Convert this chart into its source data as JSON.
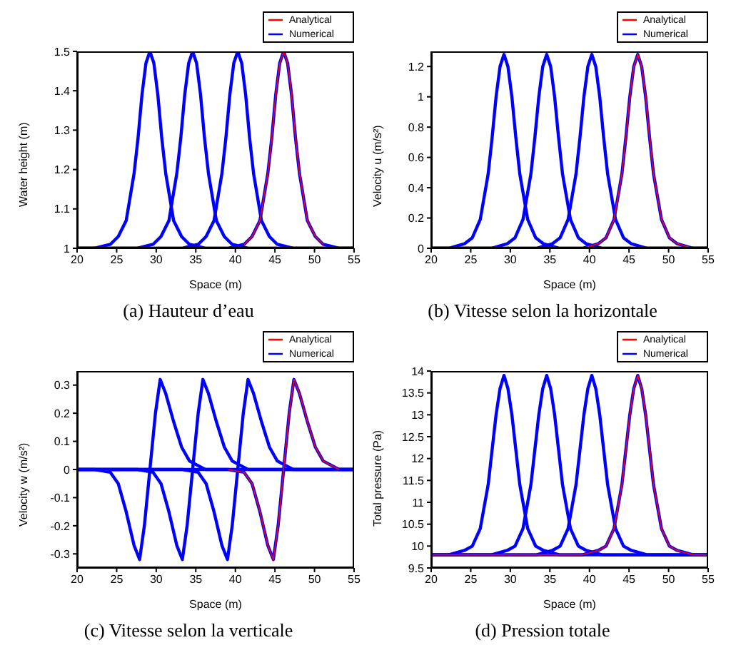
{
  "chart_data": [
    {
      "type": "line",
      "title": "(a) Hauteur d’eau",
      "xlabel": "Space (m)",
      "ylabel": "Water height (m)",
      "xlim": [
        20,
        55
      ],
      "xticks": [
        20,
        25,
        30,
        35,
        40,
        45,
        50,
        55
      ],
      "ylim": [
        1,
        1.5
      ],
      "yticks": [
        1,
        1.1,
        1.2,
        1.3,
        1.4,
        1.5
      ],
      "grid": false,
      "legend": "top right",
      "marker": "none",
      "line_style": "solid",
      "series": [
        {
          "name": "Numerical",
          "color": "#0000ff",
          "x": [
            20,
            22.2,
            24.2,
            25.2,
            26.2,
            27.2,
            27.7,
            28.2,
            28.7,
            29.2,
            29.7,
            30.2,
            30.7,
            31.2,
            32.2,
            33.2,
            34.2,
            36.2,
            55
          ],
          "values": [
            1,
            1,
            1.01,
            1.03,
            1.07,
            1.19,
            1.28,
            1.39,
            1.47,
            1.5,
            1.47,
            1.39,
            1.28,
            1.19,
            1.07,
            1.03,
            1.01,
            1,
            1
          ]
        },
        {
          "color": "#0000ff",
          "x": [
            20,
            27.6,
            29.6,
            30.6,
            31.6,
            32.6,
            33.1,
            33.6,
            34.1,
            34.6,
            35.1,
            35.6,
            36.1,
            36.6,
            37.6,
            38.6,
            39.6,
            41.6,
            55
          ],
          "values": [
            1,
            1,
            1.01,
            1.03,
            1.07,
            1.19,
            1.28,
            1.39,
            1.47,
            1.5,
            1.47,
            1.39,
            1.28,
            1.19,
            1.07,
            1.03,
            1.01,
            1,
            1
          ]
        },
        {
          "color": "#0000ff",
          "x": [
            20,
            33.3,
            35.3,
            36.3,
            37.3,
            38.3,
            38.8,
            39.3,
            39.8,
            40.3,
            40.8,
            41.3,
            41.8,
            42.3,
            43.3,
            44.3,
            45.3,
            47.3,
            55
          ],
          "values": [
            1,
            1,
            1.01,
            1.03,
            1.07,
            1.19,
            1.28,
            1.39,
            1.47,
            1.5,
            1.47,
            1.39,
            1.28,
            1.19,
            1.07,
            1.03,
            1.01,
            1,
            1
          ]
        },
        {
          "color": "#0000ff",
          "x": [
            20,
            39.1,
            41.1,
            42.1,
            43.1,
            44.1,
            44.6,
            45.1,
            45.6,
            46.1,
            46.6,
            47.1,
            47.6,
            48.1,
            49.1,
            50.1,
            51.1,
            53.1,
            55
          ],
          "values": [
            1,
            1,
            1.01,
            1.03,
            1.07,
            1.19,
            1.28,
            1.39,
            1.47,
            1.5,
            1.47,
            1.39,
            1.28,
            1.19,
            1.07,
            1.03,
            1.01,
            1,
            1
          ]
        },
        {
          "name": "Analytical",
          "color": "#ff0000",
          "x": [
            41.1,
            42.1,
            43.1,
            44.1,
            44.6,
            45.1,
            45.6,
            46.1,
            46.6,
            47.1,
            47.6,
            48.1,
            49.1,
            50.1,
            51.1
          ],
          "values": [
            1.01,
            1.03,
            1.07,
            1.19,
            1.28,
            1.39,
            1.47,
            1.5,
            1.47,
            1.39,
            1.28,
            1.19,
            1.07,
            1.03,
            1.01
          ]
        }
      ]
    },
    {
      "type": "line",
      "title": "(b) Vitesse selon la horizontale",
      "xlabel": "Space (m)",
      "ylabel": "Velocity u (m/s²)",
      "xlim": [
        20,
        55
      ],
      "xticks": [
        20,
        25,
        30,
        35,
        40,
        45,
        50,
        55
      ],
      "ylim": [
        0,
        1.3
      ],
      "yticks": [
        0,
        0.2,
        0.4,
        0.6,
        0.8,
        1,
        1.2
      ],
      "grid": false,
      "legend": "top right",
      "marker": "none",
      "line_style": "solid",
      "series": [
        {
          "name": "Numerical",
          "color": "#0000ff",
          "x": [
            20,
            22.2,
            24.2,
            25.2,
            26.2,
            27.2,
            27.7,
            28.2,
            28.7,
            29.2,
            29.7,
            30.2,
            30.7,
            31.2,
            32.2,
            33.2,
            34.2,
            36.2,
            55
          ],
          "values": [
            0,
            0,
            0.03,
            0.07,
            0.19,
            0.49,
            0.73,
            1,
            1.2,
            1.28,
            1.2,
            1,
            0.73,
            0.49,
            0.19,
            0.07,
            0.03,
            0,
            0
          ]
        },
        {
          "color": "#0000ff",
          "x": [
            20,
            27.6,
            29.6,
            30.6,
            31.6,
            32.6,
            33.1,
            33.6,
            34.1,
            34.6,
            35.1,
            35.6,
            36.1,
            36.6,
            37.6,
            38.6,
            39.6,
            41.6,
            55
          ],
          "values": [
            0,
            0,
            0.03,
            0.07,
            0.19,
            0.49,
            0.73,
            1,
            1.2,
            1.28,
            1.2,
            1,
            0.73,
            0.49,
            0.19,
            0.07,
            0.03,
            0,
            0
          ]
        },
        {
          "color": "#0000ff",
          "x": [
            20,
            33.3,
            35.3,
            36.3,
            37.3,
            38.3,
            38.8,
            39.3,
            39.8,
            40.3,
            40.8,
            41.3,
            41.8,
            42.3,
            43.3,
            44.3,
            45.3,
            47.3,
            55
          ],
          "values": [
            0,
            0,
            0.03,
            0.07,
            0.19,
            0.49,
            0.73,
            1,
            1.2,
            1.28,
            1.2,
            1,
            0.73,
            0.49,
            0.19,
            0.07,
            0.03,
            0,
            0
          ]
        },
        {
          "color": "#0000ff",
          "x": [
            20,
            39.1,
            41.1,
            42.1,
            43.1,
            44.1,
            44.6,
            45.1,
            45.6,
            46.1,
            46.6,
            47.1,
            47.6,
            48.1,
            49.1,
            50.1,
            51.1,
            53.1,
            55
          ],
          "values": [
            0,
            0,
            0.03,
            0.07,
            0.19,
            0.49,
            0.73,
            1,
            1.2,
            1.28,
            1.2,
            1,
            0.73,
            0.49,
            0.19,
            0.07,
            0.03,
            0,
            0
          ]
        },
        {
          "name": "Analytical",
          "color": "#ff0000",
          "x": [
            20,
            39.1,
            41.1,
            42.1,
            43.1,
            44.1,
            44.6,
            45.1,
            45.6,
            46.1,
            46.6,
            47.1,
            47.6,
            48.1,
            49.1,
            50.1,
            51.1,
            53.1,
            55
          ],
          "values": [
            0,
            0,
            0.03,
            0.07,
            0.19,
            0.49,
            0.73,
            1,
            1.2,
            1.28,
            1.2,
            1,
            0.73,
            0.49,
            0.19,
            0.07,
            0.03,
            0,
            0
          ]
        }
      ]
    },
    {
      "type": "line",
      "title": "(c) Vitesse selon la verticale",
      "xlabel": "Space (m)",
      "ylabel": "Velocity w (m/s²)",
      "xlim": [
        20,
        55
      ],
      "xticks": [
        20,
        25,
        30,
        35,
        40,
        45,
        50,
        55
      ],
      "ylim": [
        -0.35,
        0.35
      ],
      "yticks": [
        -0.3,
        -0.2,
        -0.1,
        0,
        0.1,
        0.2,
        0.3
      ],
      "grid": false,
      "legend": "top right",
      "marker": "none",
      "line_style": "solid",
      "series": [
        {
          "name": "Numerical",
          "color": "#0000ff",
          "x": [
            20,
            22.2,
            24.2,
            25.2,
            26.2,
            27.2,
            27.9,
            28.5,
            29.2,
            29.9,
            30.5,
            31.2,
            32.2,
            33.2,
            34.2,
            36.2,
            55
          ],
          "values": [
            0,
            0,
            -0.01,
            -0.05,
            -0.15,
            -0.27,
            -0.32,
            -0.2,
            0,
            0.2,
            0.32,
            0.27,
            0.17,
            0.08,
            0.03,
            0,
            0
          ]
        },
        {
          "color": "#0000ff",
          "x": [
            20,
            27.6,
            29.6,
            30.6,
            31.6,
            32.6,
            33.3,
            33.9,
            34.6,
            35.3,
            35.9,
            36.6,
            37.6,
            38.6,
            39.6,
            41.6,
            55
          ],
          "values": [
            0,
            0,
            -0.01,
            -0.05,
            -0.15,
            -0.27,
            -0.32,
            -0.2,
            0,
            0.2,
            0.32,
            0.27,
            0.17,
            0.08,
            0.03,
            0,
            0
          ]
        },
        {
          "color": "#0000ff",
          "x": [
            20,
            33.3,
            35.3,
            36.3,
            37.3,
            38.3,
            39,
            39.6,
            40.3,
            41,
            41.6,
            42.3,
            43.3,
            44.3,
            45.3,
            47.3,
            55
          ],
          "values": [
            0,
            0,
            -0.01,
            -0.05,
            -0.15,
            -0.27,
            -0.32,
            -0.2,
            0,
            0.2,
            0.32,
            0.27,
            0.17,
            0.08,
            0.03,
            0,
            0
          ]
        },
        {
          "color": "#0000ff",
          "x": [
            20,
            39.1,
            41.1,
            42.1,
            43.1,
            44.1,
            44.8,
            45.4,
            46.1,
            46.8,
            47.4,
            48.1,
            49.1,
            50.1,
            51.1,
            53.1,
            55
          ],
          "values": [
            0,
            0,
            -0.01,
            -0.05,
            -0.15,
            -0.27,
            -0.32,
            -0.2,
            0,
            0.2,
            0.32,
            0.27,
            0.17,
            0.08,
            0.03,
            0,
            0
          ]
        },
        {
          "name": "Analytical",
          "color": "#ff0000",
          "x": [
            39.1,
            41.1,
            42.1,
            43.1,
            44.1,
            44.8,
            45.4,
            46.1,
            46.8,
            47.4,
            48.1,
            49.1,
            50.1,
            51.1,
            53.1
          ],
          "values": [
            0,
            -0.01,
            -0.05,
            -0.15,
            -0.27,
            -0.32,
            -0.2,
            0,
            0.2,
            0.32,
            0.27,
            0.17,
            0.08,
            0.03,
            0
          ]
        }
      ]
    },
    {
      "type": "line",
      "title": "(d) Pression totale",
      "xlabel": "Space (m)",
      "ylabel": "Total pressure (Pa)",
      "xlim": [
        20,
        55
      ],
      "xticks": [
        20,
        25,
        30,
        35,
        40,
        45,
        50,
        55
      ],
      "ylim": [
        9.5,
        14
      ],
      "yticks": [
        9.5,
        10,
        10.5,
        11,
        11.5,
        12,
        12.5,
        13,
        13.5,
        14
      ],
      "grid": false,
      "legend": "top right",
      "marker": "none",
      "line_style": "solid",
      "series": [
        {
          "name": "Numerical",
          "color": "#0000ff",
          "x": [
            20,
            22.2,
            24.2,
            25.2,
            26.2,
            27.2,
            27.7,
            28.2,
            28.7,
            29.2,
            29.7,
            30.2,
            30.7,
            31.2,
            32.2,
            33.2,
            34.2,
            36.2,
            55
          ],
          "values": [
            9.8,
            9.8,
            9.9,
            10,
            10.4,
            11.4,
            12.2,
            13,
            13.6,
            13.9,
            13.6,
            13,
            12.2,
            11.4,
            10.4,
            10,
            9.9,
            9.8,
            9.8
          ]
        },
        {
          "color": "#0000ff",
          "x": [
            20,
            27.6,
            29.6,
            30.6,
            31.6,
            32.6,
            33.1,
            33.6,
            34.1,
            34.6,
            35.1,
            35.6,
            36.1,
            36.6,
            37.6,
            38.6,
            39.6,
            41.6,
            55
          ],
          "values": [
            9.8,
            9.8,
            9.9,
            10,
            10.4,
            11.4,
            12.2,
            13,
            13.6,
            13.9,
            13.6,
            13,
            12.2,
            11.4,
            10.4,
            10,
            9.9,
            9.8,
            9.8
          ]
        },
        {
          "color": "#0000ff",
          "x": [
            20,
            33.3,
            35.3,
            36.3,
            37.3,
            38.3,
            38.8,
            39.3,
            39.8,
            40.3,
            40.8,
            41.3,
            41.8,
            42.3,
            43.3,
            44.3,
            45.3,
            47.3,
            55
          ],
          "values": [
            9.8,
            9.8,
            9.9,
            10,
            10.4,
            11.4,
            12.2,
            13,
            13.6,
            13.9,
            13.6,
            13,
            12.2,
            11.4,
            10.4,
            10,
            9.9,
            9.8,
            9.8
          ]
        },
        {
          "color": "#0000ff",
          "x": [
            20,
            39.1,
            41.1,
            42.1,
            43.1,
            44.1,
            44.6,
            45.1,
            45.6,
            46.1,
            46.6,
            47.1,
            47.6,
            48.1,
            49.1,
            50.1,
            51.1,
            53.1,
            55
          ],
          "values": [
            9.8,
            9.8,
            9.9,
            10,
            10.4,
            11.4,
            12.2,
            13,
            13.6,
            13.9,
            13.6,
            13,
            12.2,
            11.4,
            10.4,
            10,
            9.9,
            9.8,
            9.8
          ]
        },
        {
          "name": "Analytical",
          "color": "#ff0000",
          "x": [
            20,
            39.1,
            41.1,
            42.1,
            43.1,
            44.1,
            44.6,
            45.1,
            45.6,
            46.1,
            46.6,
            47.1,
            47.6,
            48.1,
            49.1,
            50.1,
            51.1,
            53.1,
            55
          ],
          "values": [
            9.8,
            9.8,
            9.9,
            10,
            10.4,
            11.4,
            12.2,
            13,
            13.6,
            13.9,
            13.6,
            13,
            12.2,
            11.4,
            10.4,
            10,
            9.9,
            9.8,
            9.8
          ]
        }
      ]
    }
  ]
}
